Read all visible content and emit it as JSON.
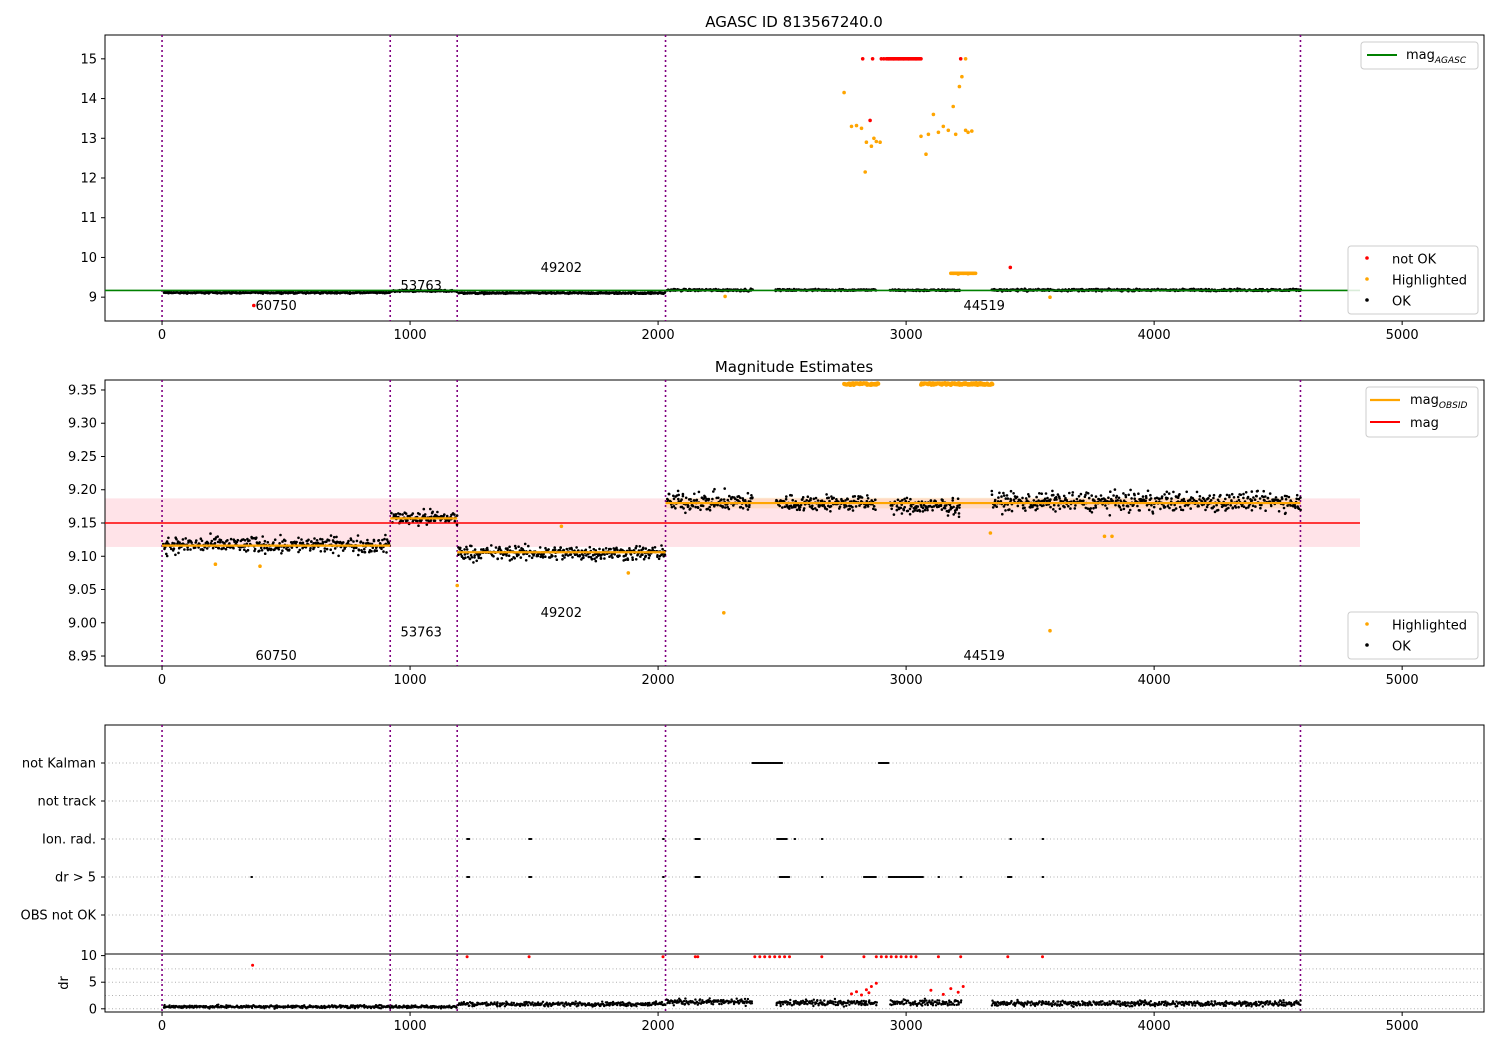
{
  "figure": {
    "width": 1500,
    "height": 1050
  },
  "colors": {
    "ok": "#000000",
    "highlighted": "#ffa500",
    "not_ok": "#ff0000",
    "agasc_line": "#008000",
    "obsid_line": "#ffa500",
    "mag_line": "#ff0000",
    "mag_band": "#ffc0cb",
    "obs_boundary": "#800080",
    "flag_grid": "#b0b0b0"
  },
  "chart_data": [
    {
      "id": "top",
      "type": "scatter",
      "title": "AGASC ID 813567240.0",
      "xlim": [
        -230,
        5330
      ],
      "ylim": [
        8.4,
        15.6
      ],
      "xticks": [
        0,
        1000,
        2000,
        3000,
        4000,
        5000
      ],
      "yticks": [
        9,
        10,
        11,
        12,
        13,
        14,
        15
      ],
      "vlines": [
        0,
        920,
        1190,
        2030,
        4590
      ],
      "obs_labels": [
        {
          "text": "60750",
          "x": 460,
          "y": 8.78
        },
        {
          "text": "53763",
          "x": 1045,
          "y": 9.28
        },
        {
          "text": "49202",
          "x": 1610,
          "y": 9.73
        },
        {
          "text": "44519",
          "x": 3315,
          "y": 8.78
        }
      ],
      "agasc_mag": {
        "value": 9.17,
        "xrange": [
          -230,
          4830
        ]
      },
      "ok_segments": [
        {
          "x0": 0,
          "x1": 920,
          "y": 9.115,
          "noise": 0.02
        },
        {
          "x0": 920,
          "x1": 1190,
          "y": 9.158,
          "noise": 0.02
        },
        {
          "x0": 1190,
          "x1": 2030,
          "y": 9.105,
          "noise": 0.02
        },
        {
          "x0": 2030,
          "x1": 2380,
          "y": 9.18,
          "noise": 0.025
        },
        {
          "x0": 2470,
          "x1": 2880,
          "y": 9.18,
          "noise": 0.02
        },
        {
          "x0": 2930,
          "x1": 3220,
          "y": 9.175,
          "noise": 0.02
        },
        {
          "x0": 3340,
          "x1": 4590,
          "y": 9.18,
          "noise": 0.025
        }
      ],
      "not_ok_points": [
        [
          370,
          8.79
        ],
        [
          2825,
          15.0
        ],
        [
          2865,
          15.0
        ],
        [
          2900,
          15.0
        ],
        [
          2910,
          15.0
        ],
        [
          2930,
          15.0
        ],
        [
          2950,
          15.0
        ],
        [
          2970,
          15.0
        ],
        [
          2990,
          15.0
        ],
        [
          3010,
          15.0
        ],
        [
          3040,
          15.0
        ],
        [
          3220,
          15.0
        ],
        [
          2855,
          13.45
        ],
        [
          3420,
          9.75
        ]
      ],
      "highlighted_points": [
        [
          2270,
          9.02
        ],
        [
          3580,
          9.0
        ],
        [
          2750,
          14.15
        ],
        [
          2780,
          13.3
        ],
        [
          2800,
          13.32
        ],
        [
          2820,
          13.25
        ],
        [
          2840,
          12.9
        ],
        [
          2860,
          12.8
        ],
        [
          2880,
          12.92
        ],
        [
          2895,
          12.9
        ],
        [
          2835,
          12.15
        ],
        [
          2870,
          13.0
        ],
        [
          3060,
          13.05
        ],
        [
          3080,
          12.6
        ],
        [
          3090,
          13.1
        ],
        [
          3110,
          13.6
        ],
        [
          3130,
          13.15
        ],
        [
          3150,
          13.3
        ],
        [
          3170,
          13.2
        ],
        [
          3190,
          13.8
        ],
        [
          3200,
          13.1
        ],
        [
          3215,
          14.3
        ],
        [
          3225,
          14.55
        ],
        [
          3240,
          13.2
        ],
        [
          3250,
          13.15
        ],
        [
          3265,
          13.18
        ],
        [
          3240,
          15.0
        ],
        [
          3190,
          9.6
        ],
        [
          3210,
          9.58
        ],
        [
          3230,
          9.6
        ],
        [
          3250,
          9.59
        ],
        [
          3270,
          9.6
        ]
      ],
      "legend": [
        {
          "label": "mag_AGASC",
          "kind": "line"
        },
        {
          "label": "not OK",
          "kind": "dot"
        },
        {
          "label": "Highlighted",
          "kind": "dot"
        },
        {
          "label": "OK",
          "kind": "dot"
        }
      ]
    },
    {
      "id": "middle",
      "type": "scatter",
      "title": "Magnitude Estimates",
      "xlim": [
        -230,
        5330
      ],
      "ylim": [
        8.935,
        9.365
      ],
      "xticks": [
        0,
        1000,
        2000,
        3000,
        4000,
        5000
      ],
      "yticks": [
        8.95,
        9.0,
        9.05,
        9.1,
        9.15,
        9.2,
        9.25,
        9.3,
        9.35
      ],
      "ytick_labels": [
        "8.95",
        "9.00",
        "9.05",
        "9.10",
        "9.15",
        "9.20",
        "9.25",
        "9.30",
        "9.35"
      ],
      "vlines": [
        0,
        920,
        1190,
        2030,
        4590
      ],
      "obs_labels": [
        {
          "text": "60750",
          "x": 460,
          "y": 8.95
        },
        {
          "text": "53763",
          "x": 1045,
          "y": 8.985
        },
        {
          "text": "49202",
          "x": 1610,
          "y": 9.015
        },
        {
          "text": "44519",
          "x": 3315,
          "y": 8.95
        }
      ],
      "mag": {
        "value": 9.15,
        "band": [
          9.114,
          9.187
        ],
        "xrange": [
          -230,
          4830
        ]
      },
      "obsid_mag": [
        {
          "x0": 0,
          "x1": 920,
          "y": 9.116
        },
        {
          "x0": 920,
          "x1": 1190,
          "y": 9.157
        },
        {
          "x0": 1190,
          "x1": 2030,
          "y": 9.106
        },
        {
          "x0": 2030,
          "x1": 4590,
          "y": 9.18
        }
      ],
      "ok_segments": [
        {
          "x0": 0,
          "x1": 920,
          "y": 9.117,
          "noise": 0.011
        },
        {
          "x0": 920,
          "x1": 1190,
          "y": 9.158,
          "noise": 0.01
        },
        {
          "x0": 1190,
          "x1": 2030,
          "y": 9.105,
          "noise": 0.01
        },
        {
          "x0": 2030,
          "x1": 2380,
          "y": 9.182,
          "noise": 0.013
        },
        {
          "x0": 2470,
          "x1": 2880,
          "y": 9.18,
          "noise": 0.011
        },
        {
          "x0": 2930,
          "x1": 3220,
          "y": 9.175,
          "noise": 0.011
        },
        {
          "x0": 3340,
          "x1": 4590,
          "y": 9.182,
          "noise": 0.013
        }
      ],
      "highlighted_points": [
        [
          215,
          9.088
        ],
        [
          395,
          9.085
        ],
        [
          1190,
          9.056
        ],
        [
          1610,
          9.145
        ],
        [
          1880,
          9.075
        ],
        [
          2265,
          9.015
        ],
        [
          3340,
          9.135
        ],
        [
          3800,
          9.13
        ],
        [
          3830,
          9.13
        ],
        [
          3580,
          8.988
        ]
      ],
      "highlighted_top_segments": [
        [
          2750,
          2890
        ],
        [
          3060,
          3350
        ]
      ],
      "legend": [
        {
          "label": "mag_OBSID",
          "kind": "line"
        },
        {
          "label": "mag",
          "kind": "line"
        },
        {
          "label": "Highlighted",
          "kind": "dot"
        },
        {
          "label": "OK",
          "kind": "dot"
        }
      ]
    },
    {
      "id": "flags",
      "type": "scatter",
      "xlim": [
        -230,
        5330
      ],
      "categories": [
        "not Kalman",
        "not track",
        "Ion. rad.",
        "dr > 5",
        "OBS not OK"
      ],
      "vlines": [
        0,
        920,
        1190,
        2030,
        4590
      ],
      "flag_points": {
        "not Kalman": [
          [
            2380,
            2500
          ],
          [
            2890,
            2930
          ]
        ],
        "not track": [],
        "Ion. rad.": [
          [
            1230,
            1240
          ],
          [
            1480,
            1490
          ],
          [
            2020,
            2025
          ],
          [
            2150,
            2170
          ],
          [
            2480,
            2520
          ],
          [
            2550,
            2555
          ],
          [
            2660,
            2665
          ],
          [
            3420,
            3425
          ],
          [
            3550,
            3555
          ]
        ],
        "dr > 5": [
          [
            360,
            365
          ],
          [
            1230,
            1240
          ],
          [
            1480,
            1490
          ],
          [
            2020,
            2025
          ],
          [
            2150,
            2170
          ],
          [
            2490,
            2530
          ],
          [
            2660,
            2665
          ],
          [
            2830,
            2880
          ],
          [
            2930,
            3070
          ],
          [
            3130,
            3135
          ],
          [
            3220,
            3225
          ],
          [
            3410,
            3425
          ],
          [
            3550,
            3555
          ]
        ],
        "OBS not OK": []
      }
    },
    {
      "id": "dr",
      "type": "scatter",
      "ylabel": "dr",
      "xlim": [
        -230,
        5330
      ],
      "ylim": [
        -0.6,
        10.3
      ],
      "xticks": [
        0,
        1000,
        2000,
        3000,
        4000,
        5000
      ],
      "yticks": [
        0,
        5,
        10
      ],
      "vlines": [
        0,
        920,
        1190,
        2030,
        4590
      ],
      "ok_segments": [
        {
          "x0": 0,
          "x1": 1190,
          "y": 0.4,
          "noise": 0.25
        },
        {
          "x0": 1190,
          "x1": 2030,
          "y": 0.9,
          "noise": 0.35
        },
        {
          "x0": 2030,
          "x1": 2380,
          "y": 1.3,
          "noise": 0.5
        },
        {
          "x0": 2470,
          "x1": 2880,
          "y": 1.1,
          "noise": 0.5
        },
        {
          "x0": 2930,
          "x1": 3220,
          "y": 1.2,
          "noise": 0.5
        },
        {
          "x0": 3340,
          "x1": 4590,
          "y": 1.0,
          "noise": 0.45
        }
      ],
      "not_ok_points": [
        [
          365,
          8.2
        ],
        [
          1230,
          9.8
        ],
        [
          1480,
          9.8
        ],
        [
          2020,
          9.8
        ],
        [
          2150,
          9.8
        ],
        [
          2160,
          9.8
        ],
        [
          2390,
          9.8
        ],
        [
          2410,
          9.8
        ],
        [
          2430,
          9.8
        ],
        [
          2450,
          9.8
        ],
        [
          2470,
          9.8
        ],
        [
          2490,
          9.8
        ],
        [
          2510,
          9.8
        ],
        [
          2530,
          9.8
        ],
        [
          2660,
          9.8
        ],
        [
          2830,
          9.8
        ],
        [
          2880,
          9.8
        ],
        [
          2900,
          9.8
        ],
        [
          2920,
          9.8
        ],
        [
          2940,
          9.8
        ],
        [
          2960,
          9.8
        ],
        [
          2980,
          9.8
        ],
        [
          3000,
          9.8
        ],
        [
          3020,
          9.8
        ],
        [
          3040,
          9.8
        ],
        [
          3130,
          9.8
        ],
        [
          3220,
          9.8
        ],
        [
          3410,
          9.8
        ],
        [
          3550,
          9.8
        ],
        [
          2780,
          2.8
        ],
        [
          2800,
          3.2
        ],
        [
          2820,
          2.6
        ],
        [
          2840,
          3.6
        ],
        [
          2860,
          4.2
        ],
        [
          2880,
          4.8
        ],
        [
          2850,
          3.0
        ],
        [
          3100,
          3.5
        ],
        [
          3150,
          2.7
        ],
        [
          3180,
          3.8
        ],
        [
          3210,
          3.1
        ],
        [
          3230,
          4.2
        ]
      ]
    }
  ]
}
